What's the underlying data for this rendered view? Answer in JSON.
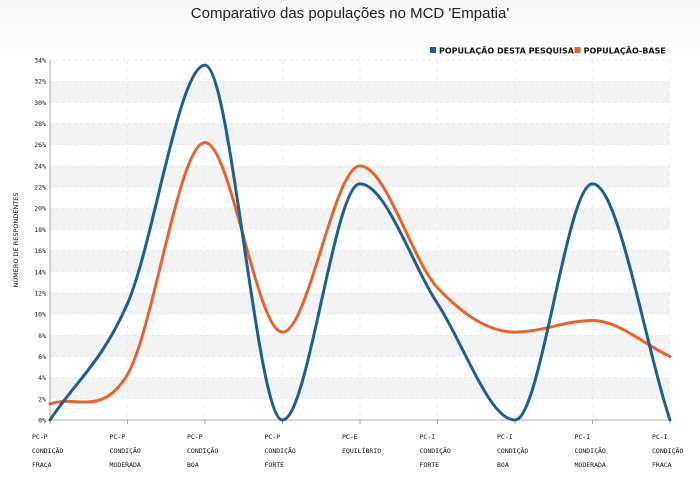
{
  "chart_data": {
    "type": "line",
    "title": "Comparativo das populações no MCD 'Empatia'",
    "ylabel": "NÚMERO DE RESPONDENTES",
    "xlabel": "",
    "ylim": [
      0,
      34
    ],
    "y_tick_step": 2,
    "y_tick_suffix": "%",
    "grid": true,
    "legend_position": "top-right",
    "categories": [
      [
        "PC-P",
        "CONDIÇÃO",
        "FRACA"
      ],
      [
        "PC-P",
        "CONDIÇÃO",
        "MODERADA"
      ],
      [
        "PC-P",
        "CONDIÇÃO",
        "BOA"
      ],
      [
        "PC-P",
        "CONDIÇÃO",
        "FORTE"
      ],
      [
        "PC-E",
        "EQUILÍBRIO"
      ],
      [
        "PC-I",
        "CONDIÇÃO",
        "FORTE"
      ],
      [
        "PC-I",
        "CONDIÇÃO",
        "BOA"
      ],
      [
        "PC-I",
        "CONDIÇÃO",
        "MODERADA"
      ],
      [
        "PC-I",
        "CONDIÇÃO",
        "FRACA"
      ]
    ],
    "series": [
      {
        "name": "POPULAÇÃO DESTA PESQUISA",
        "color": "#1f5f8b",
        "values": [
          0,
          11,
          33.5,
          0,
          22.3,
          11,
          0,
          22.3,
          0
        ]
      },
      {
        "name": "POPULAÇÃO-BASE",
        "color": "#e8632a",
        "values": [
          1.5,
          4.3,
          26.2,
          8.3,
          24,
          12.5,
          8.3,
          9.4,
          6
        ]
      }
    ]
  }
}
